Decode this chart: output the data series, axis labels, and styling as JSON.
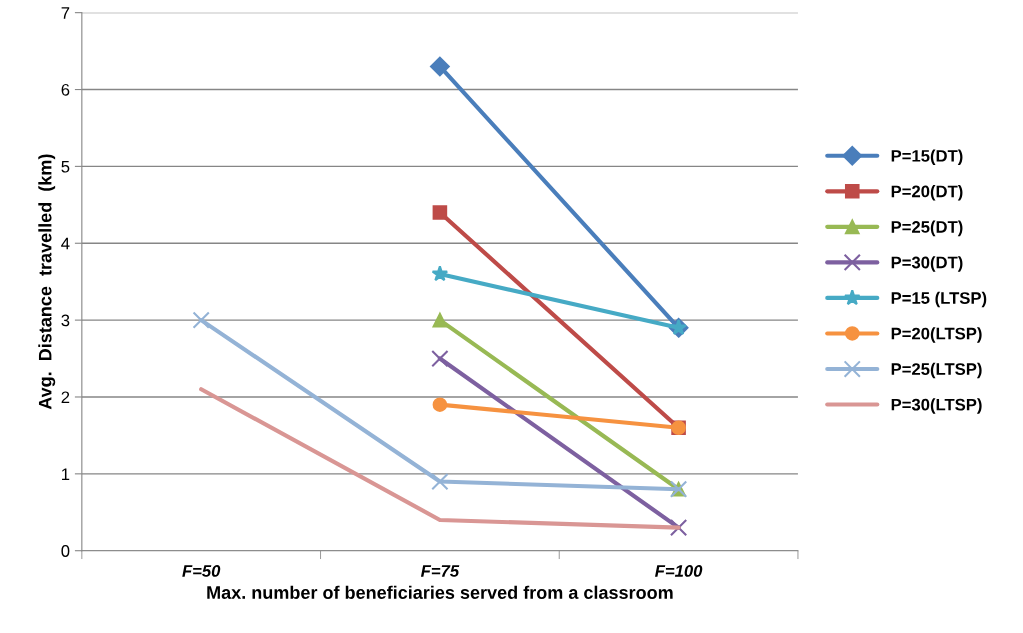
{
  "chart_data": {
    "type": "line",
    "xlabel": "Max. number of beneficiaries served from a classroom",
    "ylabel": "Avg.  Distance  travelled  (km)",
    "categories": [
      "F=50",
      "F=75",
      "F=100"
    ],
    "series": [
      {
        "name": "P=15(DT)",
        "color": "#4a7ebb",
        "marker": "diamond",
        "values": [
          null,
          6.3,
          2.9
        ]
      },
      {
        "name": "P=20(DT)",
        "color": "#be4b48",
        "marker": "square",
        "values": [
          null,
          4.4,
          1.6
        ]
      },
      {
        "name": "P=25(DT)",
        "color": "#98b954",
        "marker": "triangle",
        "values": [
          null,
          3.0,
          0.8
        ]
      },
      {
        "name": "P=30(DT)",
        "color": "#7d60a0",
        "marker": "cross",
        "values": [
          null,
          2.5,
          0.3
        ]
      },
      {
        "name": "P=15 (LTSP)",
        "color": "#46aac5",
        "marker": "star",
        "values": [
          null,
          3.6,
          2.9
        ]
      },
      {
        "name": "P=20(LTSP)",
        "color": "#f69240",
        "marker": "circle",
        "values": [
          null,
          1.9,
          1.6
        ]
      },
      {
        "name": "P=25(LTSP)",
        "color": "#94b3d6",
        "marker": "cross",
        "values": [
          3.0,
          0.9,
          0.8
        ]
      },
      {
        "name": "P=30(LTSP)",
        "color": "#d99694",
        "marker": "none",
        "values": [
          2.1,
          0.4,
          0.3
        ]
      }
    ],
    "ylim": [
      0,
      7
    ],
    "yticks": [
      0,
      1,
      2,
      3,
      4,
      5,
      6,
      7
    ],
    "grid": "y",
    "legend": "right",
    "line_style": "solid"
  }
}
